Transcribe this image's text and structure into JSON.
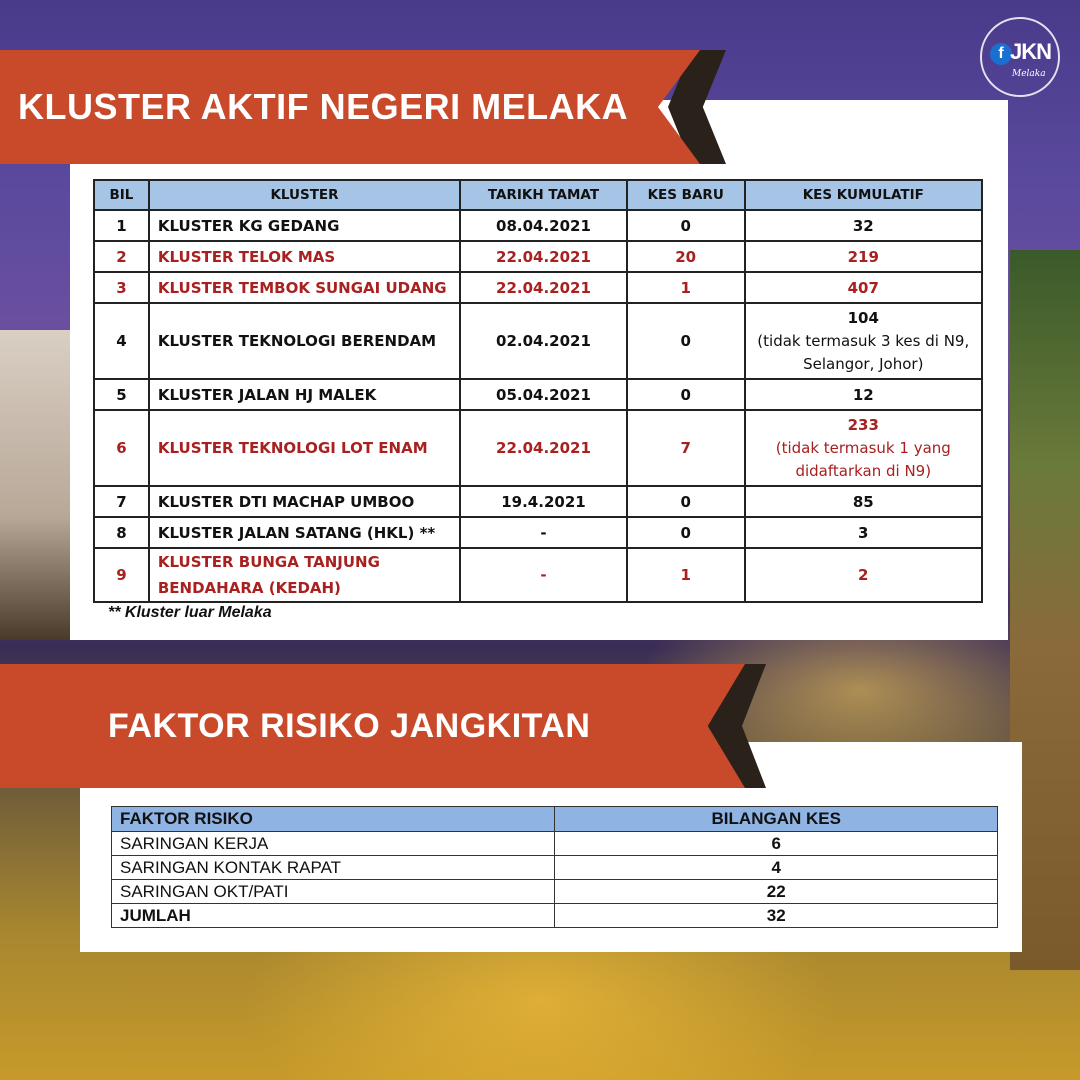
{
  "section1": {
    "title": "KLUSTER AKTIF  NEGERI MELAKA",
    "headers": [
      "BIL",
      "KLUSTER",
      "TARIKH TAMAT",
      "KES BARU",
      "KES KUMULATIF"
    ],
    "rows": [
      {
        "bil": "1",
        "kluster": "KLUSTER KG GEDANG",
        "tarikh": "08.04.2021",
        "baru": "0",
        "kumulatif": "32",
        "note": "",
        "highlight": false
      },
      {
        "bil": "2",
        "kluster": "KLUSTER TELOK MAS",
        "tarikh": "22.04.2021",
        "baru": "20",
        "kumulatif": "219",
        "note": "",
        "highlight": true
      },
      {
        "bil": "3",
        "kluster": "KLUSTER TEMBOK SUNGAI UDANG",
        "tarikh": "22.04.2021",
        "baru": "1",
        "kumulatif": "407",
        "note": "",
        "highlight": true
      },
      {
        "bil": "4",
        "kluster": "KLUSTER TEKNOLOGI BERENDAM",
        "tarikh": "02.04.2021",
        "baru": "0",
        "kumulatif": "104",
        "note": "(tidak termasuk 3 kes di N9, Selangor, Johor)",
        "highlight": false
      },
      {
        "bil": "5",
        "kluster": "KLUSTER JALAN HJ MALEK",
        "tarikh": "05.04.2021",
        "baru": "0",
        "kumulatif": "12",
        "note": "",
        "highlight": false
      },
      {
        "bil": "6",
        "kluster": "KLUSTER TEKNOLOGI LOT ENAM",
        "tarikh": "22.04.2021",
        "baru": "7",
        "kumulatif": "233",
        "note": "(tidak termasuk 1 yang didaftarkan di N9)",
        "highlight": true
      },
      {
        "bil": "7",
        "kluster": "KLUSTER DTI MACHAP UMBOO",
        "tarikh": "19.4.2021",
        "baru": "0",
        "kumulatif": "85",
        "note": "",
        "highlight": false
      },
      {
        "bil": "8",
        "kluster": "KLUSTER JALAN SATANG (HKL) **",
        "tarikh": "-",
        "baru": "0",
        "kumulatif": "3",
        "note": "",
        "highlight": false
      },
      {
        "bil": "9",
        "kluster": "KLUSTER BUNGA TANJUNG BENDAHARA (KEDAH)",
        "tarikh": "-",
        "baru": "1",
        "kumulatif": "2",
        "note": "",
        "highlight": true
      }
    ],
    "footnote": "** Kluster luar Melaka"
  },
  "section2": {
    "title": "FAKTOR RISIKO JANGKITAN",
    "headers": [
      "FAKTOR RISIKO",
      "BILANGAN KES"
    ],
    "rows": [
      {
        "faktor": "SARINGAN KERJA",
        "bilangan": "6"
      },
      {
        "faktor": "SARINGAN KONTAK RAPAT",
        "bilangan": "4"
      },
      {
        "faktor": "SARINGAN OKT/PATI",
        "bilangan": "22"
      },
      {
        "faktor": "JUMLAH",
        "bilangan": "32"
      }
    ]
  },
  "logo": {
    "text": "JKN",
    "sub": "Melaka",
    "icon": "facebook-icon"
  },
  "colors": {
    "banner": "#c84a2a",
    "header_blue": "#a6c4e6",
    "highlight_red": "#a82020"
  }
}
